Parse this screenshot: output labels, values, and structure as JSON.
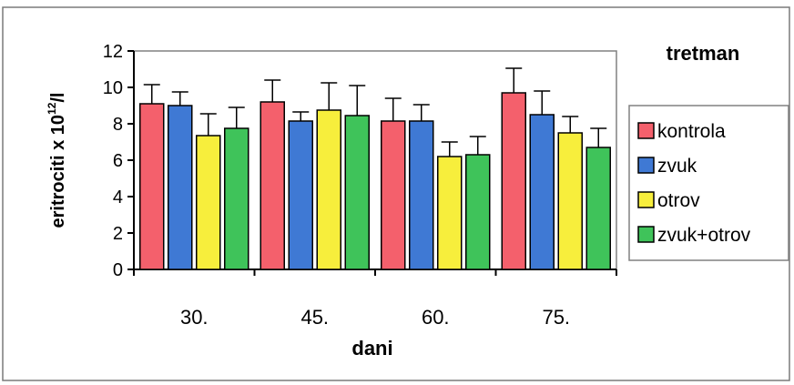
{
  "chart_data": {
    "type": "bar",
    "categories": [
      "30.",
      "45.",
      "60.",
      "75."
    ],
    "series": [
      {
        "name": "kontrola",
        "color": "#f4606c",
        "values": [
          9.1,
          9.2,
          8.15,
          9.7
        ],
        "errors": [
          1.05,
          1.2,
          1.25,
          1.35
        ]
      },
      {
        "name": "zvuk",
        "color": "#3f79d4",
        "values": [
          9.0,
          8.15,
          8.15,
          8.5
        ],
        "errors": [
          0.75,
          0.5,
          0.9,
          1.3
        ]
      },
      {
        "name": "otrov",
        "color": "#f7ee3c",
        "values": [
          7.35,
          8.75,
          6.2,
          7.5
        ],
        "errors": [
          1.2,
          1.5,
          0.8,
          0.9
        ]
      },
      {
        "name": "zvuk+otrov",
        "color": "#3fc35a",
        "values": [
          7.75,
          8.45,
          6.3,
          6.7
        ],
        "errors": [
          1.15,
          1.65,
          1.0,
          1.05
        ]
      }
    ],
    "title": "",
    "xlabel": "dani",
    "ylabel_main": "eritrociti x 10",
    "ylabel_sup": "12",
    "ylabel_unit": "/l",
    "ylim": [
      0,
      12
    ],
    "yticks": [
      "0",
      "2",
      "4",
      "6",
      "8",
      "10",
      "12"
    ],
    "legend_title": "tretman",
    "legend_position": "right",
    "grid": false,
    "plot_background": "#ffffff",
    "frame_color": "#808080"
  }
}
